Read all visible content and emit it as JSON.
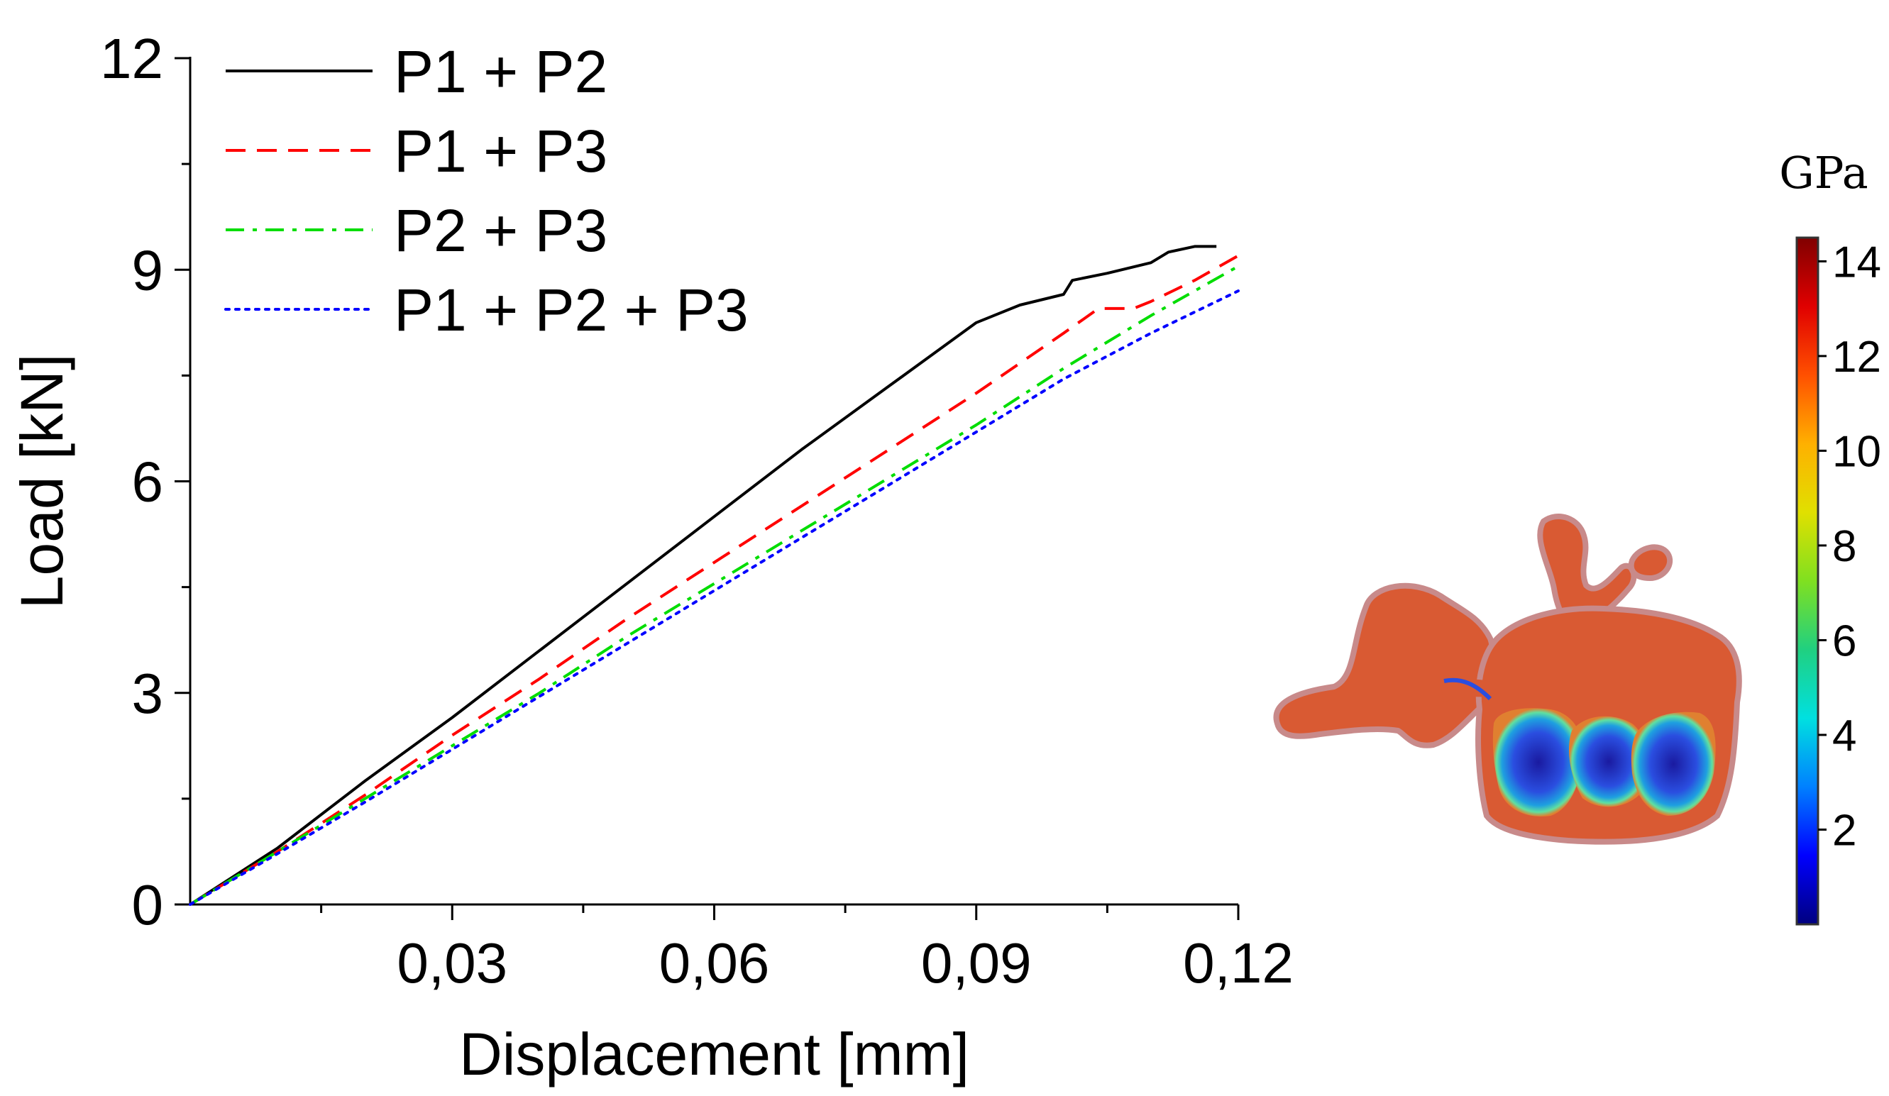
{
  "chart_data": {
    "type": "line",
    "xlabel": "Displacement [mm]",
    "ylabel": "Load [kN]",
    "xlim": [
      0,
      0.12
    ],
    "ylim": [
      0,
      12
    ],
    "x_ticks": [
      0.03,
      0.06,
      0.09,
      0.12
    ],
    "x_tick_labels": [
      "0,03",
      "0,06",
      "0,09",
      "0,12"
    ],
    "y_ticks": [
      0,
      3,
      6,
      9,
      12
    ],
    "y_tick_labels": [
      "0",
      "3",
      "6",
      "9",
      "12"
    ],
    "grid": false,
    "legend_position": "top-left",
    "series": [
      {
        "name": "P1 + P2",
        "color": "#000000",
        "style": "solid",
        "x": [
          0,
          0.01,
          0.02,
          0.03,
          0.04,
          0.05,
          0.06,
          0.07,
          0.08,
          0.09,
          0.095,
          0.1,
          0.101,
          0.105,
          0.11,
          0.112,
          0.115,
          0.1175
        ],
        "y": [
          0,
          0.8,
          1.75,
          2.65,
          3.6,
          4.55,
          5.5,
          6.45,
          7.35,
          8.25,
          8.5,
          8.65,
          8.85,
          8.95,
          9.1,
          9.25,
          9.33,
          9.33
        ]
      },
      {
        "name": "P1 + P3",
        "color": "#ff0000",
        "style": "dashed",
        "x": [
          0,
          0.01,
          0.02,
          0.03,
          0.04,
          0.05,
          0.06,
          0.07,
          0.08,
          0.09,
          0.1,
          0.104,
          0.108,
          0.11,
          0.115,
          0.12
        ],
        "y": [
          0,
          0.75,
          1.55,
          2.4,
          3.2,
          4.05,
          4.85,
          5.65,
          6.45,
          7.25,
          8.1,
          8.45,
          8.45,
          8.55,
          8.85,
          9.2
        ]
      },
      {
        "name": "P2 + P3",
        "color": "#00dd00",
        "style": "dash-dot",
        "x": [
          0,
          0.01,
          0.02,
          0.03,
          0.04,
          0.05,
          0.06,
          0.07,
          0.08,
          0.09,
          0.1,
          0.11,
          0.12
        ],
        "y": [
          0,
          0.75,
          1.5,
          2.25,
          3.0,
          3.8,
          4.55,
          5.3,
          6.05,
          6.8,
          7.6,
          8.35,
          9.05
        ]
      },
      {
        "name": "P1 + P2 + P3",
        "color": "#0000ff",
        "style": "dotted",
        "x": [
          0,
          0.01,
          0.02,
          0.03,
          0.04,
          0.05,
          0.06,
          0.07,
          0.08,
          0.09,
          0.1,
          0.11,
          0.12
        ],
        "y": [
          0,
          0.72,
          1.45,
          2.2,
          2.95,
          3.7,
          4.45,
          5.2,
          5.95,
          6.7,
          7.45,
          8.1,
          8.7
        ]
      }
    ]
  },
  "colorbar": {
    "unit": "GPa",
    "ticks": [
      2,
      4,
      6,
      8,
      10,
      12,
      14
    ],
    "tick_labels": [
      "2",
      "4",
      "6",
      "8",
      "10",
      "12",
      "14"
    ],
    "range": [
      0,
      14.5
    ],
    "colors": [
      "#00007f",
      "#0000ff",
      "#0080ff",
      "#00e0e0",
      "#20d080",
      "#80e020",
      "#e0e000",
      "#ffb000",
      "#ff5000",
      "#e00000",
      "#800000"
    ]
  },
  "vertebra_image": {
    "icon": "vertebra-stress-render",
    "body_color": "#d95a33",
    "low_stress_color": "#1f3fd8"
  }
}
